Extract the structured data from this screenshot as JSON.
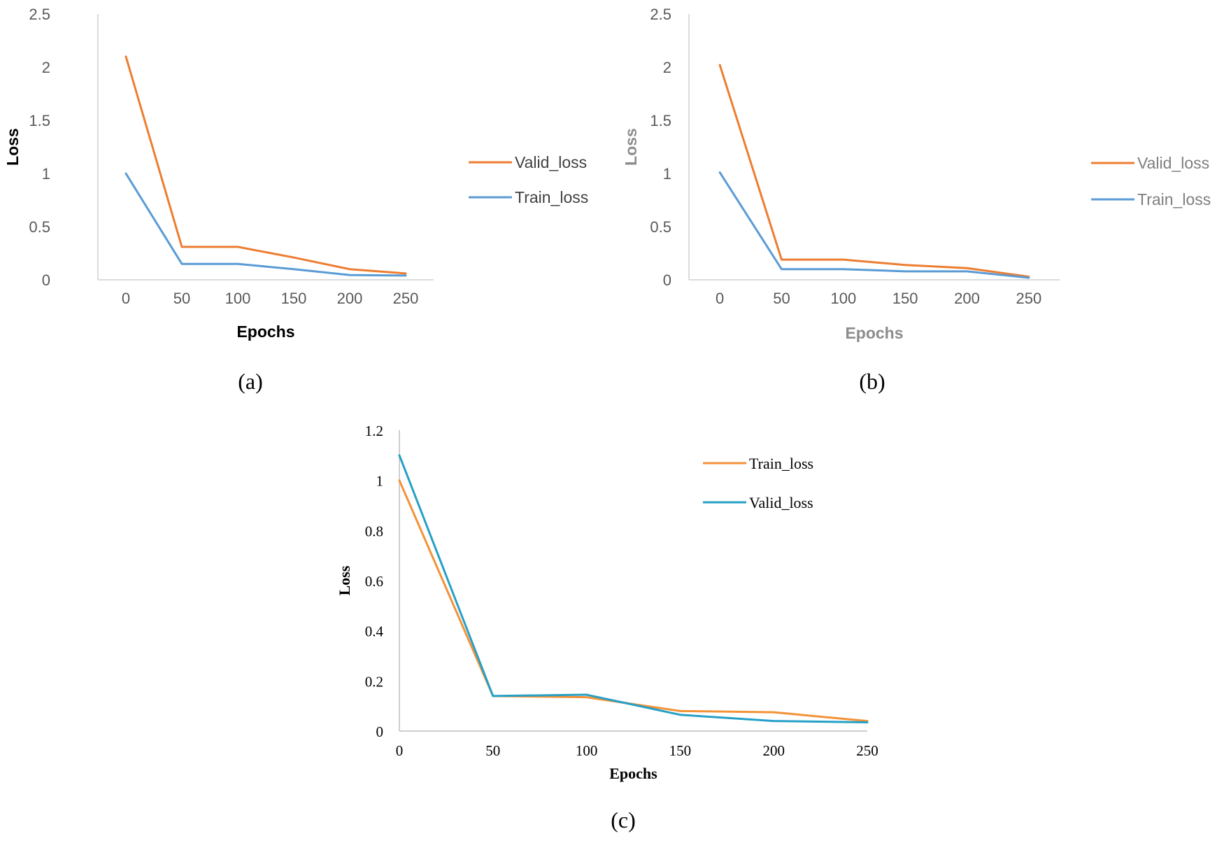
{
  "chart_data": [
    {
      "type": "line",
      "caption": "(a)",
      "xlabel": "Epochs",
      "ylabel": "Loss",
      "x": [
        0,
        50,
        100,
        150,
        200,
        250
      ],
      "xticks": [
        "0",
        "50",
        "100",
        "150",
        "200",
        "250"
      ],
      "yticks": [
        "0",
        "0.5",
        "1",
        "1.5",
        "2",
        "2.5"
      ],
      "ylim": [
        0,
        2.5
      ],
      "legend_position": "right",
      "series": [
        {
          "name": "Valid_loss",
          "color": "#ED7D31",
          "values": [
            2.1,
            0.31,
            0.31,
            0.21,
            0.1,
            0.06
          ]
        },
        {
          "name": "Train_loss",
          "color": "#5B9BD5",
          "values": [
            1.0,
            0.15,
            0.15,
            0.1,
            0.045,
            0.04
          ]
        }
      ]
    },
    {
      "type": "line",
      "caption": "(b)",
      "xlabel": "Epochs",
      "ylabel": "Loss",
      "x": [
        0,
        50,
        100,
        150,
        200,
        250
      ],
      "xticks": [
        "0",
        "50",
        "100",
        "150",
        "200",
        "250"
      ],
      "yticks": [
        "0",
        "0.5",
        "1",
        "1.5",
        "2",
        "2.5"
      ],
      "ylim": [
        0,
        2.5
      ],
      "legend_position": "right",
      "series": [
        {
          "name": "Valid_loss",
          "color": "#ED7D31",
          "values": [
            2.02,
            0.19,
            0.19,
            0.14,
            0.11,
            0.03
          ]
        },
        {
          "name": "Train_loss",
          "color": "#5B9BD5",
          "values": [
            1.01,
            0.1,
            0.1,
            0.08,
            0.08,
            0.02
          ]
        }
      ]
    },
    {
      "type": "line",
      "caption": "(c)",
      "xlabel": "Epochs",
      "ylabel": "Loss",
      "x": [
        0,
        50,
        100,
        150,
        200,
        250
      ],
      "xticks": [
        "0",
        "50",
        "100",
        "150",
        "200",
        "250"
      ],
      "yticks": [
        "0",
        "0.2",
        "0.4",
        "0.6",
        "0.8",
        "1",
        "1.2"
      ],
      "ylim": [
        0,
        1.2
      ],
      "legend_position": "top-right",
      "series": [
        {
          "name": "Train_loss",
          "color": "#F39237",
          "values": [
            1.0,
            0.14,
            0.135,
            0.08,
            0.075,
            0.04
          ]
        },
        {
          "name": "Valid_loss",
          "color": "#26A0C6",
          "values": [
            1.1,
            0.14,
            0.145,
            0.065,
            0.04,
            0.035
          ]
        }
      ]
    }
  ]
}
